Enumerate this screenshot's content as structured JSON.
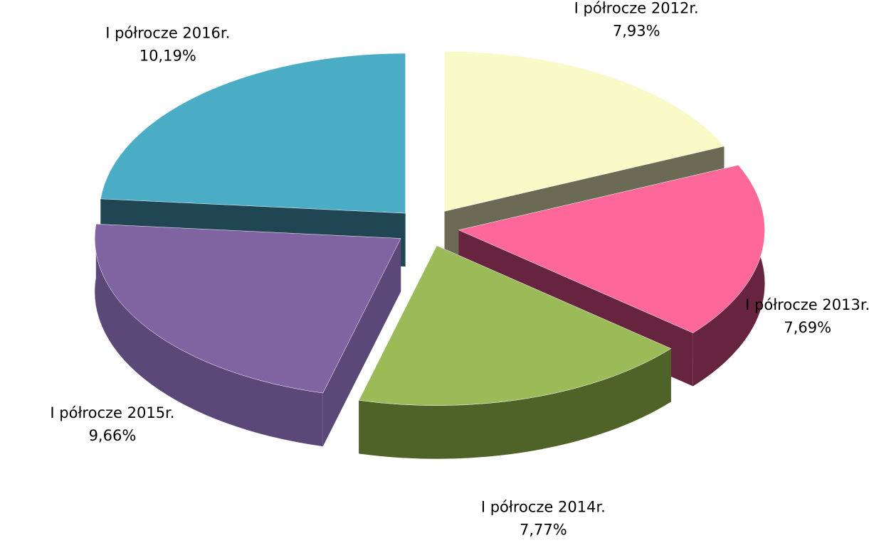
{
  "chart_data": {
    "type": "pie3d",
    "categories": [
      "I półrocze 2012r.",
      "I półrocze 2013r.",
      "I półrocze 2014r.",
      "I półrocze 2015r.",
      "I półrocze 2016r."
    ],
    "values": [
      7.93,
      7.69,
      7.77,
      9.66,
      10.19
    ],
    "value_labels": [
      "7,93%",
      "7,69%",
      "7,77%",
      "9,66%",
      "10,19%"
    ],
    "colors": [
      "#fafac8",
      "#fd6799",
      "#9bbb59",
      "#8064a2",
      "#4bacc6"
    ],
    "side_colors": [
      "#6b6b55",
      "#66243e",
      "#4f6228",
      "#5b4778",
      "#1f4652"
    ]
  }
}
